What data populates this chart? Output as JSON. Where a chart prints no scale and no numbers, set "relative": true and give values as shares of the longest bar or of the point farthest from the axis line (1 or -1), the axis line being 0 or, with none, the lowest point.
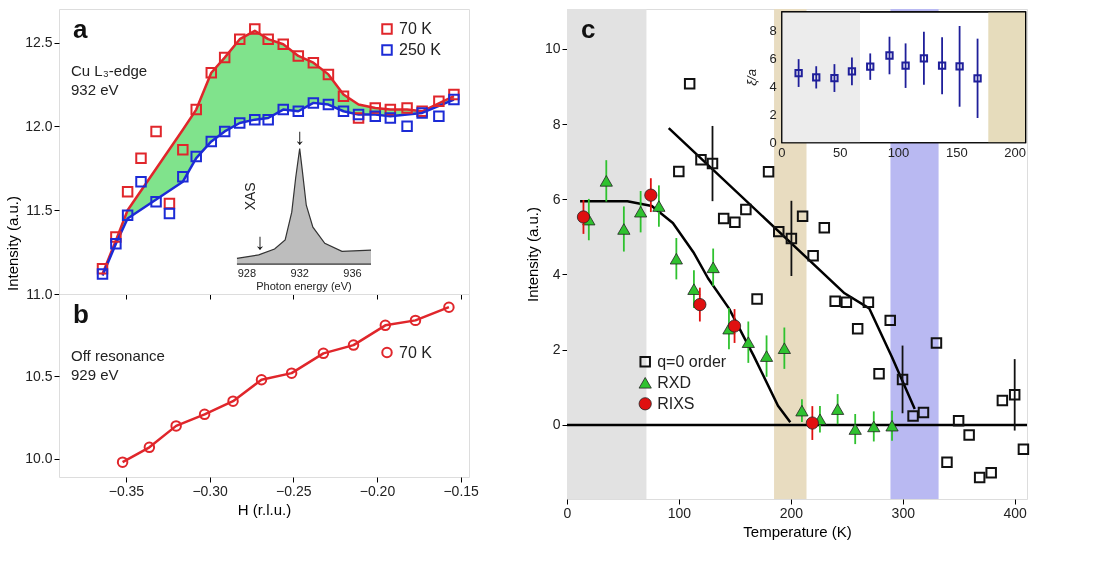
{
  "chart_data": [
    {
      "type": "scatter",
      "title": "a",
      "annotations": [
        "Cu L₃-edge",
        "932 eV"
      ],
      "xlim": [
        -0.39,
        -0.145
      ],
      "ylim": [
        11.0,
        12.7
      ],
      "xticks": [
        {
          "value": -0.35,
          "label": null
        },
        {
          "value": -0.3,
          "label": null
        },
        {
          "value": -0.25,
          "label": null
        },
        {
          "value": -0.2,
          "label": null
        },
        {
          "value": -0.15,
          "label": null
        }
      ],
      "yticks": [
        {
          "value": 11.0,
          "label": "11.0"
        },
        {
          "value": 11.5,
          "label": "11.5"
        },
        {
          "value": 12.0,
          "label": "12.0"
        },
        {
          "value": 12.5,
          "label": "12.5"
        }
      ],
      "tick_labels": "y",
      "legend": "top right",
      "marker": "square",
      "x": [
        -0.364,
        -0.356,
        -0.349,
        -0.341,
        -0.332,
        -0.324,
        -0.316,
        -0.308,
        -0.299,
        -0.291,
        -0.282,
        -0.273,
        -0.265,
        -0.256,
        -0.247,
        -0.238,
        -0.229,
        -0.22,
        -0.211,
        -0.201,
        -0.192,
        -0.182,
        -0.173,
        -0.163,
        -0.154
      ],
      "series": [
        {
          "type": "line",
          "marker": "none",
          "color": "#e0262b",
          "x": [
            -0.364,
            -0.356,
            -0.349,
            -0.316,
            -0.308,
            -0.299,
            -0.291,
            -0.282,
            -0.273,
            -0.265,
            -0.256,
            -0.247,
            -0.238,
            -0.229,
            -0.22,
            -0.211,
            -0.201,
            -0.192,
            -0.182,
            -0.173,
            -0.154
          ],
          "values": [
            11.12,
            11.32,
            11.5,
            11.98,
            12.1,
            12.32,
            12.41,
            12.52,
            12.57,
            12.52,
            12.49,
            12.42,
            12.38,
            12.31,
            12.19,
            12.13,
            12.11,
            12.1,
            12.1,
            12.09,
            12.18
          ],
          "lower": [
            11.11,
            11.3,
            11.45,
            11.67,
            11.81,
            11.91,
            11.97,
            12.02,
            12.04,
            12.05,
            12.1,
            12.09,
            12.14,
            12.13,
            12.09,
            12.07,
            12.07,
            12.06,
            12.07,
            12.08,
            12.16
          ],
          "upper": [
            11.12,
            11.32,
            11.5,
            11.98,
            12.1,
            12.32,
            12.41,
            12.52,
            12.57,
            12.52,
            12.49,
            12.42,
            12.38,
            12.31,
            12.19,
            12.13,
            12.11,
            12.1,
            12.1,
            12.09,
            12.18
          ]
        },
        {
          "type": "line",
          "marker": "none",
          "color": "#1c2bd6",
          "x": [
            -0.364,
            -0.356,
            -0.349,
            -0.316,
            -0.308,
            -0.299,
            -0.291,
            -0.282,
            -0.273,
            -0.265,
            -0.256,
            -0.247,
            -0.238,
            -0.229,
            -0.22,
            -0.211,
            -0.201,
            -0.192,
            -0.182,
            -0.173,
            -0.154
          ],
          "values": [
            11.11,
            11.3,
            11.45,
            11.67,
            11.81,
            11.91,
            11.97,
            12.02,
            12.04,
            12.05,
            12.1,
            12.09,
            12.14,
            12.13,
            12.09,
            12.07,
            12.07,
            12.06,
            12.07,
            12.08,
            12.16
          ]
        },
        {
          "name": "70 K",
          "color": "#e0262b",
          "values": [
            11.15,
            11.34,
            11.61,
            11.81,
            11.97,
            11.54,
            11.86,
            12.1,
            12.32,
            12.41,
            12.52,
            12.58,
            12.52,
            12.49,
            12.42,
            12.38,
            12.31,
            12.18,
            12.05,
            12.11,
            12.1,
            12.11,
            12.09,
            12.15,
            12.19
          ]
        },
        {
          "name": "250 K",
          "color": "#1c2bd6",
          "values": [
            11.12,
            11.3,
            11.47,
            11.67,
            11.55,
            11.48,
            11.7,
            11.82,
            11.91,
            11.97,
            12.02,
            12.04,
            12.04,
            12.1,
            12.09,
            12.14,
            12.13,
            12.09,
            12.07,
            12.06,
            12.05,
            12.0,
            12.08,
            12.06,
            12.16
          ]
        }
      ]
    },
    {
      "type": "area",
      "relative": true,
      "xlabel": "Photon energy (eV)",
      "ylabel": "XAS",
      "color": "#bdbdbd",
      "xlim": [
        927.25,
        937.4
      ],
      "xticks": [
        928,
        932,
        936
      ],
      "x": [
        927.25,
        928.9,
        930.1,
        930.9,
        931.4,
        931.7,
        932.0,
        932.2,
        932.5,
        933.0,
        933.9,
        935.2,
        937.4
      ],
      "values": [
        0.05,
        0.08,
        0.13,
        0.21,
        0.45,
        0.75,
        1,
        0.81,
        0.51,
        0.32,
        0.18,
        0.11,
        0.12
      ],
      "annotations": [
        {
          "text": "↓",
          "x": 929,
          "y": 0.09
        },
        {
          "text": "↓",
          "x": 932,
          "y": 1.0
        }
      ]
    },
    {
      "type": "line",
      "title": "b",
      "annotations": [
        "Off resonance",
        "929 eV"
      ],
      "xlabel": "H (r.l.u.)",
      "ylabel": "Intensity (a.u.)",
      "xlim": [
        -0.39,
        -0.145
      ],
      "ylim": [
        9.89,
        11.0
      ],
      "xticks": [
        {
          "value": -0.35,
          "label": "−0.35"
        },
        {
          "value": -0.3,
          "label": "−0.30"
        },
        {
          "value": -0.25,
          "label": "−0.25"
        },
        {
          "value": -0.2,
          "label": "−0.20"
        },
        {
          "value": -0.15,
          "label": "−0.15"
        }
      ],
      "yticks": [
        {
          "value": 10.0,
          "label": "10.0"
        },
        {
          "value": 10.5,
          "label": "10.5"
        }
      ],
      "legend": "right",
      "marker": "circle",
      "x": [
        -0.352,
        -0.336,
        -0.32,
        -0.303,
        -0.286,
        -0.269,
        -0.251,
        -0.232,
        -0.214,
        -0.195,
        -0.177,
        -0.157
      ],
      "series": [
        {
          "name": "70 K",
          "color": "#e0262b",
          "values": [
            9.98,
            10.07,
            10.2,
            10.27,
            10.35,
            10.48,
            10.52,
            10.64,
            10.69,
            10.81,
            10.84,
            10.92
          ]
        }
      ]
    },
    {
      "type": "scatter",
      "title": "c",
      "xlabel": "Temperature (K)",
      "ylabel": "Intensity (a.u.)",
      "xlim": [
        0,
        411
      ],
      "ylim": [
        -1.97,
        11.06
      ],
      "xticks": [
        0,
        100,
        200,
        300,
        400
      ],
      "yticks": [
        0,
        2,
        4,
        6,
        8,
        10
      ],
      "legend": "bottom left",
      "bands": [
        {
          "axis": "x",
          "from": 0,
          "to": 71,
          "color": "#e2e2e2"
        },
        {
          "axis": "x",
          "from": 185,
          "to": 214,
          "color": "#e8dcc0"
        },
        {
          "axis": "x",
          "from": 289,
          "to": 332,
          "color": "#b9b9f2"
        }
      ],
      "ref_lines": [
        {
          "axis": "y",
          "value": 0,
          "color": "#000000"
        }
      ],
      "series": [
        {
          "type": "line",
          "marker": "none",
          "color": "#000000",
          "x": [
            11.7,
            54,
            75.8,
            94.6,
            113.4,
            126,
            144.7,
            166.6,
            188.5,
            199.5
          ],
          "values": [
            5.95,
            5.95,
            5.82,
            5.37,
            4.57,
            3.9,
            3.1,
            1.85,
            0.51,
            0.07
          ]
        },
        {
          "type": "line",
          "marker": "none",
          "color": "#000000",
          "x": [
            90.9,
            248,
            270,
            290.4,
            310.7
          ],
          "values": [
            7.89,
            3.5,
            3.1,
            1.8,
            0.42
          ]
        },
        {
          "name": "q=0 order",
          "marker": "square",
          "color": "#111111",
          "x": [
            99.9,
            109.6,
            119.7,
            130.0,
            140.0,
            150.0,
            159.8,
            169.8,
            180.1,
            189.2,
            200.5,
            210.5,
            219.9,
            229.9,
            239.6,
            249.6,
            259.7,
            269.3,
            278.8,
            288.8,
            299.8,
            309.2,
            318.5,
            330.1,
            339.5,
            349.9,
            359.3,
            368.7,
            379.0,
            389.0,
            400.0,
            407.8
          ],
          "values": [
            6.74,
            9.07,
            7.05,
            6.95,
            5.49,
            5.39,
            5.73,
            3.35,
            6.73,
            5.14,
            4.96,
            5.55,
            4.5,
            5.24,
            3.29,
            3.26,
            2.56,
            3.26,
            1.36,
            2.78,
            1.21,
            0.24,
            0.33,
            2.18,
            -0.99,
            0.11,
            -0.27,
            -1.4,
            -1.27,
            0.65,
            0.8,
            -0.65
          ],
          "errors": [
            null,
            null,
            null,
            1.0,
            null,
            null,
            null,
            null,
            null,
            null,
            1.0,
            null,
            null,
            null,
            null,
            null,
            null,
            null,
            null,
            null,
            0.9,
            null,
            null,
            null,
            null,
            null,
            null,
            null,
            null,
            null,
            0.95,
            null
          ]
        },
        {
          "name": "RXD",
          "marker": "triangle",
          "color": "#2fc22f",
          "x": [
            19.5,
            35.1,
            50.8,
            65.8,
            82.1,
            97.7,
            113.4,
            130.6,
            144.7,
            162.0,
            178.3,
            194.2,
            209.9,
            226.0,
            241.8,
            257.5,
            274.1,
            290.4
          ],
          "values": [
            5.46,
            6.49,
            5.21,
            5.67,
            5.82,
            4.42,
            3.61,
            4.19,
            2.56,
            2.2,
            1.83,
            2.04,
            0.38,
            0.15,
            0.42,
            -0.11,
            -0.04,
            -0.02
          ],
          "errors": [
            0.55,
            0.55,
            0.6,
            0.55,
            0.55,
            0.55,
            0.5,
            0.5,
            0.55,
            0.55,
            0.55,
            0.55,
            0.3,
            0.35,
            0.4,
            0.4,
            0.4,
            0.4
          ]
        },
        {
          "name": "RIXS",
          "marker": "circle",
          "color": "#e01010",
          "x": [
            14.7,
            74.9,
            118.7,
            149.7,
            219.2
          ],
          "values": [
            5.53,
            6.11,
            3.2,
            2.63,
            0.05
          ],
          "errors": [
            0.45,
            0.45,
            0.45,
            0.45,
            0.45
          ]
        }
      ]
    },
    {
      "type": "scatter",
      "ylabel": "ξ/a",
      "xlim": [
        0,
        209
      ],
      "ylim": [
        0,
        9.4
      ],
      "xticks": [
        0,
        50,
        100,
        150,
        200
      ],
      "yticks": [
        0,
        2,
        4,
        6,
        8
      ],
      "marker": "square",
      "bands": [
        {
          "axis": "x",
          "from": 0,
          "to": 67,
          "color": "#ececec"
        },
        {
          "axis": "x",
          "from": 177,
          "to": 209,
          "color": "#e6dcbc"
        }
      ],
      "series": [
        {
          "color": "#1f1f9a",
          "x": [
            14.4,
            29.5,
            45.1,
            60.1,
            75.8,
            92.3,
            106.1,
            121.8,
            137.4,
            152.4,
            167.8
          ],
          "values": [
            5.01,
            4.7,
            4.65,
            5.13,
            5.47,
            6.27,
            5.54,
            6.07,
            5.54,
            5.49,
            4.63
          ],
          "errors": [
            1.0,
            0.8,
            1.0,
            1.0,
            0.95,
            1.35,
            1.6,
            1.9,
            2.05,
            2.9,
            2.85
          ]
        }
      ]
    }
  ]
}
